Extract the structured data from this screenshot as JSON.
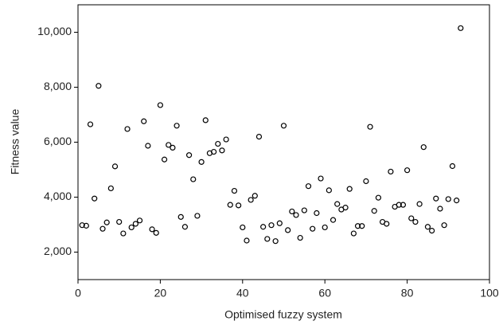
{
  "chart_data": {
    "type": "scatter",
    "x_label": "Optimised fuzzy system",
    "y_label": "Fitness value",
    "color": "#000000",
    "x": [
      1,
      2,
      3,
      4,
      5,
      6,
      7,
      8,
      9,
      10,
      11,
      12,
      13,
      14,
      15,
      16,
      17,
      18,
      19,
      20,
      21,
      22,
      23,
      24,
      25,
      26,
      27,
      28,
      29,
      30,
      31,
      32,
      33,
      34,
      35,
      36,
      37,
      38,
      39,
      40,
      41,
      42,
      43,
      44,
      45,
      46,
      47,
      48,
      49,
      50,
      51,
      52,
      53,
      54,
      55,
      56,
      57,
      58,
      59,
      60,
      61,
      62,
      63,
      64,
      65,
      66,
      67,
      68,
      69,
      70,
      71,
      72,
      73,
      74,
      75,
      76,
      77,
      78,
      79,
      80,
      81,
      82,
      83,
      84,
      85,
      86,
      87,
      88,
      89,
      90,
      91,
      92,
      93
    ],
    "values": [
      2980,
      2960,
      6650,
      3950,
      8050,
      2850,
      3080,
      4320,
      5120,
      3100,
      2680,
      6480,
      2900,
      3030,
      3150,
      6760,
      5870,
      2830,
      2700,
      7350,
      5370,
      5900,
      5800,
      6600,
      3280,
      2920,
      5530,
      4650,
      3320,
      5280,
      6800,
      5600,
      5650,
      5940,
      5700,
      6100,
      3720,
      4230,
      3700,
      2900,
      2420,
      3900,
      4050,
      6200,
      2920,
      2480,
      2980,
      2400,
      3050,
      6600,
      2800,
      3480,
      3350,
      2520,
      3520,
      4400,
      2850,
      3420,
      4680,
      2900,
      4250,
      3170,
      3750,
      3550,
      3620,
      4300,
      2680,
      2950,
      2950,
      4580,
      6560,
      3500,
      3980,
      3100,
      3030,
      4930,
      3650,
      3720,
      3720,
      4980,
      3230,
      3100,
      3750,
      5820,
      2920,
      2780,
      3950,
      3580,
      2980,
      3930,
      5130,
      3880,
      10150
    ],
    "xlim": [
      0,
      100
    ],
    "xticks": [
      0,
      20,
      40,
      60,
      80,
      100
    ],
    "ylim": [
      1000,
      11000
    ],
    "yticks": [
      {
        "value": 2000,
        "label": "2,000"
      },
      {
        "value": 4000,
        "label": "4,000"
      },
      {
        "value": 6000,
        "label": "6,000"
      },
      {
        "value": 8000,
        "label": "8,000"
      },
      {
        "value": 10000,
        "label": "10,000"
      }
    ]
  }
}
